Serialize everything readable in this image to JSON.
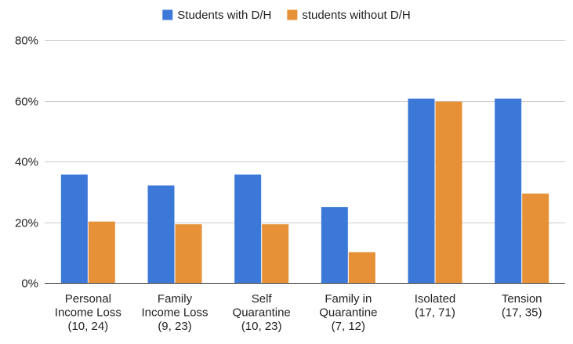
{
  "chart_data": {
    "type": "bar",
    "title": "",
    "xlabel": "",
    "ylabel": "",
    "ylim": [
      0,
      80
    ],
    "y_unit": "%",
    "y_ticks": [
      0,
      20,
      40,
      60,
      80
    ],
    "y_tick_labels": [
      "0%",
      "20%",
      "40%",
      "60%",
      "80%"
    ],
    "grid": "horizontal",
    "legend_position": "top-center",
    "categories": [
      [
        "Personal",
        "Income Loss",
        "(10, 24)"
      ],
      [
        "Family",
        "Income Loss",
        "(9, 23)"
      ],
      [
        "Self",
        "Quarantine",
        "(10, 23)"
      ],
      [
        "Family in",
        "Quarantine",
        "(7, 12)"
      ],
      [
        "Isolated",
        "(17, 71)"
      ],
      [
        "Tension",
        "(17, 35)"
      ]
    ],
    "series": [
      {
        "name": "Students with D/H",
        "color": "#3c78d8",
        "values": [
          35.7,
          32.1,
          35.7,
          25.0,
          60.7,
          60.7
        ]
      },
      {
        "name": "students without D/H",
        "color": "#e69138",
        "values": [
          20.2,
          19.3,
          19.3,
          10.1,
          59.7,
          29.4
        ]
      }
    ]
  }
}
